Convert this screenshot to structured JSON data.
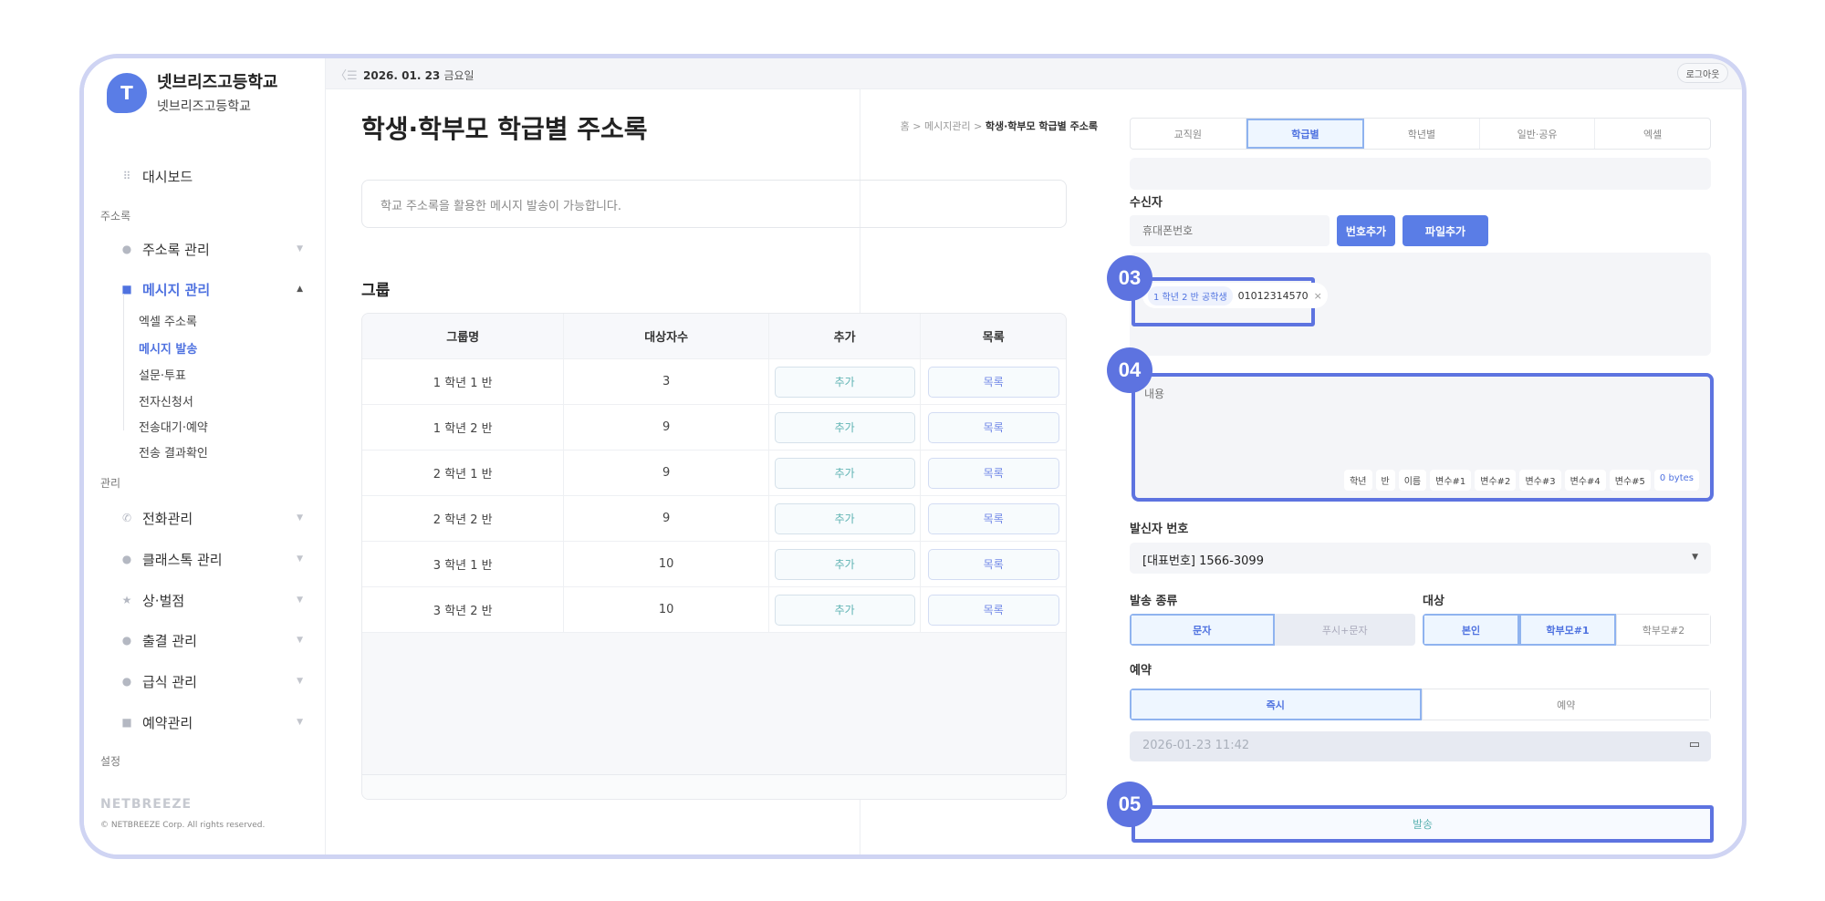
{
  "sidebar": {
    "avatar_letter": "T",
    "school_name": "넷브리즈고등학교",
    "school_sub": "넷브리즈고등학교",
    "dashboard": "대시보드",
    "section_address": "주소록",
    "address_mgmt": "주소록 관리",
    "message_mgmt": "메시지 관리",
    "message_sub": [
      "엑셀 주소록",
      "메시지 발송",
      "설문·투표",
      "전자신청서",
      "전송대기·예약",
      "전송 결과확인"
    ],
    "section_manage": "관리",
    "manage_items": [
      "전화관리",
      "클래스톡 관리",
      "상·벌점",
      "출결 관리",
      "급식 관리",
      "예약관리"
    ],
    "section_settings": "설정",
    "logo": "NETBREEZE",
    "copyright": "© NETBREEZE Corp. All rights reserved."
  },
  "header": {
    "date": "2026. 01. 23",
    "weekday": "금요일",
    "logout": "로그아웃"
  },
  "main": {
    "title": "학생·학부모 학급별 주소록",
    "breadcrumb": [
      "홈",
      "메시지관리",
      "학생·학부모 학급별 주소록"
    ],
    "info": "학교 주소록을 활용한 메시지 발송이 가능합니다.",
    "group_label": "그룹",
    "table": {
      "headers": [
        "그룹명",
        "대상자수",
        "추가",
        "목록"
      ],
      "rows": [
        {
          "name": "1 학년 1 반",
          "count": "3",
          "add": "추가",
          "list": "목록"
        },
        {
          "name": "1 학년 2 반",
          "count": "9",
          "add": "추가",
          "list": "목록"
        },
        {
          "name": "2 학년 1 반",
          "count": "9",
          "add": "추가",
          "list": "목록"
        },
        {
          "name": "2 학년 2 반",
          "count": "9",
          "add": "추가",
          "list": "목록"
        },
        {
          "name": "3 학년 1 반",
          "count": "10",
          "add": "추가",
          "list": "목록"
        },
        {
          "name": "3 학년 2 반",
          "count": "10",
          "add": "추가",
          "list": "목록"
        }
      ]
    }
  },
  "panel": {
    "tabs": [
      "교직원",
      "학급별",
      "학년별",
      "일반·공유",
      "엑셀"
    ],
    "active_tab": "학급별",
    "recipient_label": "수신자",
    "phone_placeholder": "휴대폰번호",
    "add_number": "번호추가",
    "add_file": "파일추가",
    "chip": {
      "tag": "1 학년 2 반 공학생",
      "number": "01012314570",
      "remove": "×"
    },
    "content_placeholder": "내용",
    "variables": [
      "학년",
      "반",
      "이름",
      "변수#1",
      "변수#2",
      "변수#3",
      "변수#4",
      "변수#5"
    ],
    "bytes": "0 bytes",
    "sender_label": "발신자 번호",
    "sender_value": "[대표번호] 1566-3099",
    "send_type_label": "발송 종류",
    "send_types": [
      "문자",
      "푸시+문자"
    ],
    "target_label": "대상",
    "targets": [
      "본인",
      "학부모#1",
      "학부모#2"
    ],
    "reserve_label": "예약",
    "reserve_options": [
      "즉시",
      "예약"
    ],
    "datetime": "2026-01-23 11:42",
    "send_button": "발송"
  },
  "annotations": [
    "03",
    "04",
    "05"
  ],
  "colors": {
    "primary": "#5a7de6",
    "annotation": "#5d73e0",
    "active_bg": "#eef6ff",
    "frame": "#cfd4f3"
  }
}
